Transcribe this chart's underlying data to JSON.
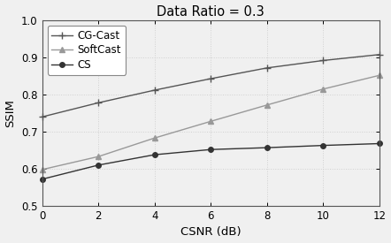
{
  "title": "Data Ratio = 0.3",
  "xlabel": "CSNR (dB)",
  "ylabel": "SSIM",
  "xlim": [
    0,
    12
  ],
  "ylim": [
    0.5,
    1.0
  ],
  "xticks": [
    0,
    2,
    4,
    6,
    8,
    10,
    12
  ],
  "yticks": [
    0.5,
    0.6,
    0.7,
    0.8,
    0.9,
    1.0
  ],
  "series": [
    {
      "label": "CG-Cast",
      "x": [
        0,
        2,
        4,
        6,
        8,
        10,
        12
      ],
      "y": [
        0.74,
        0.778,
        0.812,
        0.843,
        0.872,
        0.892,
        0.908
      ],
      "color": "#555555",
      "marker": "+",
      "linestyle": "-",
      "markersize": 6,
      "linewidth": 1.0
    },
    {
      "label": "SoftCast",
      "x": [
        0,
        2,
        4,
        6,
        8,
        10,
        12
      ],
      "y": [
        0.598,
        0.633,
        0.683,
        0.728,
        0.772,
        0.815,
        0.852
      ],
      "color": "#999999",
      "marker": "^",
      "linestyle": "-",
      "markersize": 4,
      "linewidth": 1.0
    },
    {
      "label": "CS",
      "x": [
        0,
        2,
        4,
        6,
        8,
        10,
        12
      ],
      "y": [
        0.572,
        0.61,
        0.638,
        0.652,
        0.657,
        0.663,
        0.668
      ],
      "color": "#333333",
      "marker": "o",
      "linestyle": "-",
      "markersize": 4,
      "linewidth": 1.0
    }
  ],
  "background_color": "#f0f0f0",
  "grid_color": "#d0d0d0",
  "title_fontsize": 10.5,
  "axis_fontsize": 9.5,
  "tick_fontsize": 8.5,
  "legend_fontsize": 8.5
}
